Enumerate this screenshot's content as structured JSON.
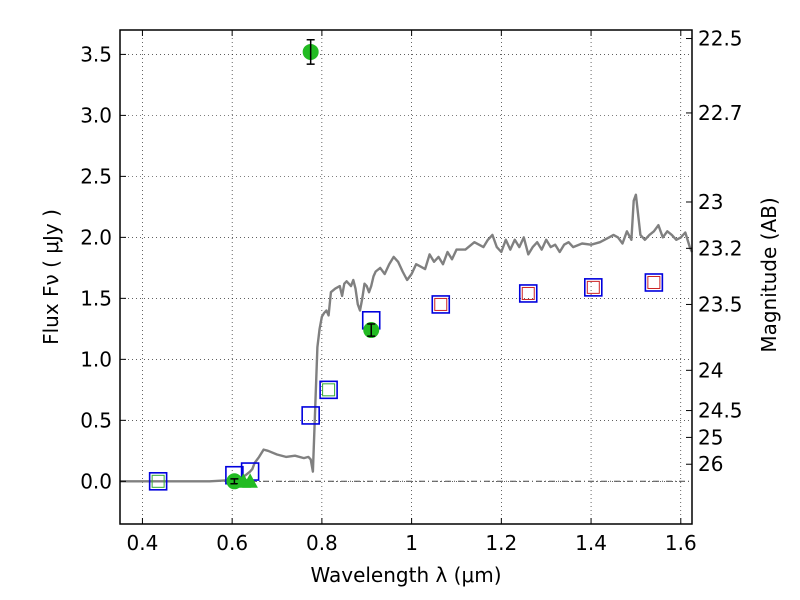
{
  "chart_data": {
    "type": "scatter",
    "xlabel": "Wavelength  λ (μm)",
    "ylabel": "Flux  Fν  ( μJy )",
    "y2label": "Magnitude (AB)",
    "xlim": [
      0.35,
      1.625
    ],
    "ylim": [
      -0.35,
      3.7
    ],
    "grid": true,
    "x_ticks": [
      0.4,
      0.6,
      0.8,
      1.0,
      1.2,
      1.4,
      1.6
    ],
    "x_tick_labels": [
      "0.4",
      "0.6",
      "0.8",
      "1",
      "1.2",
      "1.4",
      "1.6"
    ],
    "y_ticks": [
      0.0,
      0.5,
      1.0,
      1.5,
      2.0,
      2.5,
      3.0,
      3.5
    ],
    "y_tick_labels": [
      "0.0",
      "0.5",
      "1.0",
      "1.5",
      "2.0",
      "2.5",
      "3.0",
      "3.5"
    ],
    "right_axis_ticks": [
      {
        "label": "22.5",
        "flux": 3.63
      },
      {
        "label": "22.7",
        "flux": 3.02
      },
      {
        "label": "23",
        "flux": 2.29
      },
      {
        "label": "23.2",
        "flux": 1.91
      },
      {
        "label": "23.5",
        "flux": 1.45
      },
      {
        "label": "24",
        "flux": 0.91
      },
      {
        "label": "24.5",
        "flux": 0.58
      },
      {
        "label": "25",
        "flux": 0.36
      },
      {
        "label": "26",
        "flux": 0.14
      }
    ],
    "colors": {
      "model_line": "#808080",
      "model_square": "#0000dd",
      "photometry": "#22bb22",
      "inner_square_green": "#33aa33",
      "inner_square_red": "#cc2222"
    },
    "series": [
      {
        "name": "model spectrum",
        "kind": "line",
        "x": [
          0.35,
          0.55,
          0.6,
          0.61,
          0.62,
          0.63,
          0.64,
          0.645,
          0.65,
          0.66,
          0.67,
          0.68,
          0.7,
          0.72,
          0.74,
          0.76,
          0.77,
          0.775,
          0.78,
          0.785,
          0.79,
          0.795,
          0.8,
          0.805,
          0.81,
          0.815,
          0.82,
          0.83,
          0.84,
          0.845,
          0.85,
          0.855,
          0.86,
          0.865,
          0.87,
          0.875,
          0.88,
          0.885,
          0.89,
          0.895,
          0.9,
          0.905,
          0.91,
          0.915,
          0.92,
          0.93,
          0.94,
          0.95,
          0.96,
          0.97,
          0.98,
          0.99,
          1.0,
          1.01,
          1.02,
          1.03,
          1.04,
          1.05,
          1.06,
          1.07,
          1.08,
          1.09,
          1.1,
          1.12,
          1.14,
          1.16,
          1.17,
          1.18,
          1.19,
          1.2,
          1.21,
          1.22,
          1.23,
          1.24,
          1.25,
          1.26,
          1.27,
          1.28,
          1.29,
          1.3,
          1.31,
          1.32,
          1.33,
          1.34,
          1.35,
          1.36,
          1.38,
          1.4,
          1.42,
          1.44,
          1.45,
          1.46,
          1.47,
          1.48,
          1.49,
          1.495,
          1.5,
          1.51,
          1.52,
          1.53,
          1.54,
          1.55,
          1.56,
          1.57,
          1.58,
          1.59,
          1.6,
          1.61,
          1.62,
          1.625
        ],
        "y": [
          0.0,
          0.0,
          0.01,
          0.02,
          0.03,
          0.05,
          0.08,
          0.1,
          0.15,
          0.2,
          0.26,
          0.25,
          0.22,
          0.2,
          0.21,
          0.19,
          0.2,
          0.18,
          0.08,
          0.6,
          1.1,
          1.25,
          1.35,
          1.38,
          1.4,
          1.36,
          1.55,
          1.58,
          1.6,
          1.52,
          1.62,
          1.64,
          1.62,
          1.6,
          1.65,
          1.58,
          1.45,
          1.4,
          1.5,
          1.62,
          1.6,
          1.55,
          1.6,
          1.68,
          1.72,
          1.75,
          1.7,
          1.78,
          1.84,
          1.8,
          1.72,
          1.65,
          1.7,
          1.78,
          1.76,
          1.74,
          1.86,
          1.8,
          1.84,
          1.78,
          1.88,
          1.82,
          1.9,
          1.9,
          1.96,
          1.92,
          1.98,
          2.02,
          1.92,
          1.88,
          1.98,
          1.9,
          1.98,
          1.92,
          2.0,
          1.86,
          1.92,
          1.96,
          1.9,
          1.98,
          1.92,
          1.94,
          1.88,
          1.94,
          1.96,
          1.92,
          1.95,
          1.94,
          1.96,
          2.0,
          2.02,
          2.0,
          1.95,
          2.05,
          1.98,
          2.3,
          2.35,
          2.02,
          1.98,
          2.02,
          2.05,
          2.1,
          2.0,
          2.05,
          2.02,
          1.98,
          2.0,
          2.04,
          1.92,
          1.88
        ]
      },
      {
        "name": "model photometry",
        "kind": "open_square",
        "x": [
          0.435,
          0.605,
          0.64,
          0.775,
          0.815,
          0.91,
          1.065,
          1.26,
          1.405,
          1.54
        ],
        "y": [
          0.0,
          0.05,
          0.08,
          0.54,
          0.75,
          1.32,
          1.45,
          1.54,
          1.59,
          1.63
        ]
      },
      {
        "name": "observed photometry",
        "kind": "filled_circle",
        "x": [
          0.775,
          0.91,
          0.605
        ],
        "y": [
          3.52,
          1.24,
          0.0
        ],
        "err": [
          0.1,
          0.05,
          0.02
        ]
      },
      {
        "name": "upper limits",
        "kind": "filled_triangle",
        "x": [
          0.625,
          0.64
        ],
        "y": [
          0.0,
          0.0
        ]
      },
      {
        "name": "inner squares green",
        "kind": "inner_square",
        "x": [
          0.435,
          0.815
        ],
        "y": [
          0.0,
          0.75
        ]
      },
      {
        "name": "inner squares red",
        "kind": "inner_square",
        "x": [
          1.065,
          1.26,
          1.405,
          1.54
        ],
        "y": [
          1.45,
          1.54,
          1.59,
          1.63
        ]
      }
    ]
  }
}
